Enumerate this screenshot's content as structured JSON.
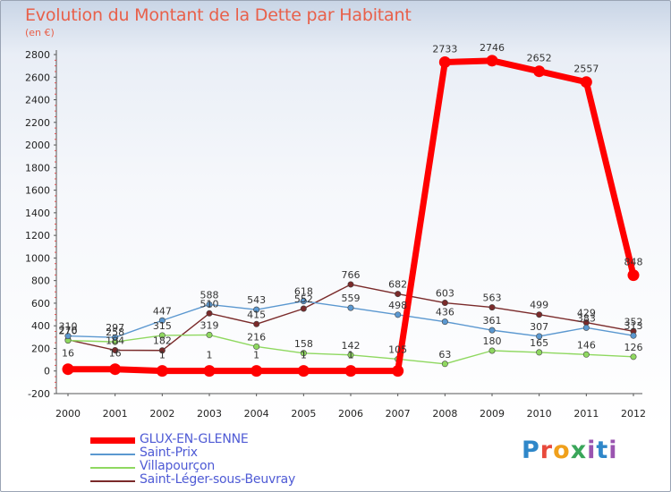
{
  "title": "Evolution du Montant de la Dette par Habitant",
  "subtitle": "(en €)",
  "brand": "Proxiti",
  "chart_data": {
    "type": "line",
    "x": [
      2000,
      2001,
      2002,
      2003,
      2004,
      2005,
      2006,
      2007,
      2008,
      2009,
      2010,
      2011,
      2012
    ],
    "ylim": [
      -200,
      2800
    ],
    "yticks": [
      -200,
      0,
      200,
      400,
      600,
      800,
      1000,
      1200,
      1400,
      1600,
      1800,
      2000,
      2200,
      2400,
      2600,
      2800
    ],
    "grid": false,
    "legend_position": "bottom-left",
    "series": [
      {
        "name": "GLUX-EN-GLENNE",
        "color": "#ff0000",
        "values": [
          16,
          16,
          1,
          1,
          1,
          1,
          1,
          1,
          2733,
          2746,
          2652,
          2557,
          848
        ]
      },
      {
        "name": "Saint-Prix",
        "color": "#5b98d0",
        "values": [
          310,
          297,
          447,
          588,
          543,
          618,
          559,
          498,
          436,
          361,
          307,
          383,
          313
        ]
      },
      {
        "name": "Villapourçon",
        "color": "#8fd860",
        "values": [
          270,
          258,
          315,
          319,
          216,
          158,
          142,
          105,
          63,
          180,
          165,
          146,
          126
        ]
      },
      {
        "name": "Saint-Léger-sous-Beuvray",
        "color": "#7a2a2a",
        "values": [
          276,
          184,
          182,
          510,
          415,
          552,
          766,
          682,
          603,
          563,
          499,
          429,
          352
        ]
      }
    ],
    "point_labels": [
      {
        "text": "16"
      },
      {
        "text": "16"
      },
      {
        "text": "1"
      },
      {
        "text": "1"
      },
      {
        "text": "1"
      },
      {
        "text": "1"
      },
      {
        "text": "1"
      },
      {
        "text": "2733"
      },
      {
        "text": "2746"
      },
      {
        "text": "2652"
      },
      {
        "text": "2557"
      },
      {
        "text": "848"
      },
      {
        "text": "310"
      },
      {
        "text": "297"
      },
      {
        "text": "447"
      },
      {
        "text": "588"
      },
      {
        "text": "543"
      },
      {
        "text": "618"
      },
      {
        "text": "559"
      },
      {
        "text": "498"
      },
      {
        "text": "436"
      },
      {
        "text": "361"
      },
      {
        "text": "307"
      },
      {
        "text": "383"
      },
      {
        "text": "313"
      },
      {
        "text": "270"
      },
      {
        "text": "258"
      },
      {
        "text": "315"
      },
      {
        "text": "319"
      },
      {
        "text": "216"
      },
      {
        "text": "158"
      },
      {
        "text": "142"
      },
      {
        "text": "105"
      },
      {
        "text": "63"
      },
      {
        "text": "180"
      },
      {
        "text": "165"
      },
      {
        "text": "146"
      },
      {
        "text": "126"
      },
      {
        "text": "276"
      },
      {
        "text": "184"
      },
      {
        "text": "182"
      },
      {
        "text": "510"
      },
      {
        "text": "415"
      },
      {
        "text": "552"
      },
      {
        "text": "766"
      },
      {
        "text": "682"
      },
      {
        "text": "603"
      },
      {
        "text": "563"
      },
      {
        "text": "499"
      },
      {
        "text": "429"
      },
      {
        "text": "352"
      }
    ]
  }
}
